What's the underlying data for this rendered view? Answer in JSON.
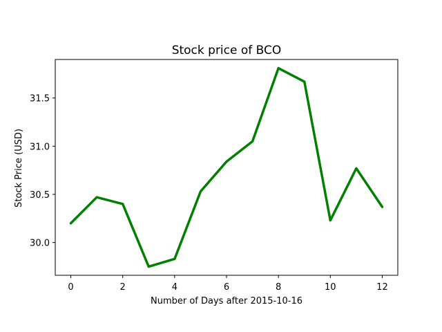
{
  "chart_data": {
    "type": "line",
    "title": "Stock price of BCO",
    "xlabel": "Number of Days after 2015-10-16",
    "ylabel": "Stock Price (USD)",
    "x": [
      0,
      1,
      2,
      3,
      4,
      5,
      6,
      7,
      8,
      9,
      10,
      11,
      12
    ],
    "series": [
      {
        "values": [
          30.2,
          30.47,
          30.4,
          29.75,
          29.83,
          30.53,
          30.84,
          31.05,
          31.81,
          31.67,
          30.23,
          30.77,
          30.37
        ],
        "color": "#008000"
      }
    ],
    "xlim": [
      -0.6,
      12.6
    ],
    "ylim": [
      29.66,
      31.9
    ],
    "xticks": [
      0,
      2,
      4,
      6,
      8,
      10,
      12
    ],
    "xtick_labels": [
      "0",
      "2",
      "4",
      "6",
      "8",
      "10",
      "12"
    ],
    "yticks": [
      30.0,
      30.5,
      31.0,
      31.5
    ],
    "ytick_labels": [
      "30.0",
      "30.5",
      "31.0",
      "31.5"
    ],
    "grid": false,
    "legend": false
  }
}
